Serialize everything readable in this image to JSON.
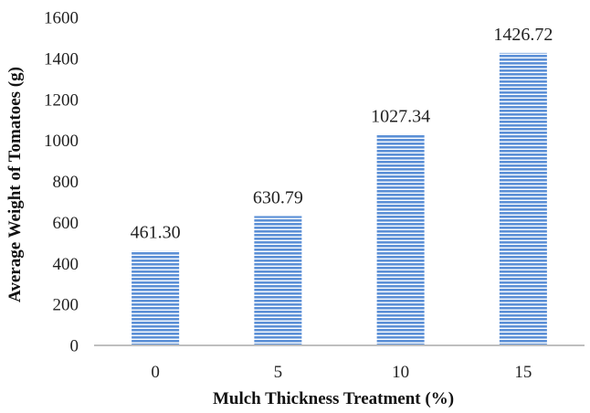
{
  "chart_data": {
    "type": "bar",
    "categories": [
      "0",
      "5",
      "10",
      "15"
    ],
    "values": [
      461.3,
      630.79,
      1027.34,
      1426.72
    ],
    "value_labels": [
      "461.30",
      "630.79",
      "1027.34",
      "1426.72"
    ],
    "title": "",
    "xlabel": "Mulch Thickness Treatment (%)",
    "ylabel": "Average Weight of Tomatoes (g)",
    "ylim": [
      0,
      1600
    ],
    "yticks": [
      "0",
      "200",
      "400",
      "600",
      "800",
      "1000",
      "1200",
      "1400",
      "1600"
    ],
    "grid": false,
    "legend": "none",
    "bar_color": "#5b8fd6",
    "bar_stripe_color": "#ffffff",
    "axis_color": "#bfbfbf"
  }
}
